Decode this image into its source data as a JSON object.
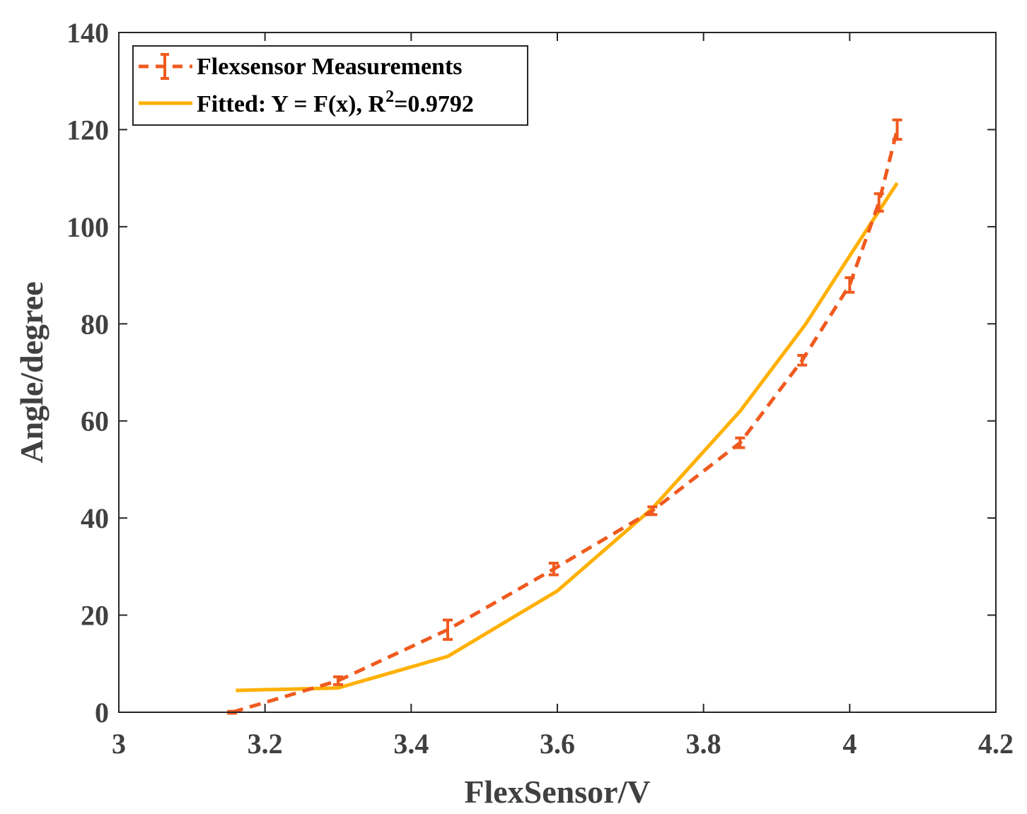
{
  "chart_data": {
    "type": "line",
    "title": "",
    "xlabel": "FlexSensor/V",
    "ylabel": "Angle/degree",
    "xlim": [
      3,
      4.2
    ],
    "ylim": [
      0,
      140
    ],
    "xticks": [
      3,
      3.2,
      3.4,
      3.6,
      3.8,
      4,
      4.2
    ],
    "xtick_labels": [
      "3",
      "3.2",
      "3.4",
      "3.6",
      "3.8",
      "4",
      "4.2"
    ],
    "yticks": [
      0,
      20,
      40,
      60,
      80,
      100,
      120,
      140
    ],
    "ytick_labels": [
      "0",
      "20",
      "40",
      "60",
      "80",
      "100",
      "120",
      "140"
    ],
    "grid": false,
    "legend_position": "top-left",
    "series": [
      {
        "name": "Flexsensor Measurements",
        "style": "dashed-errorbar",
        "color": "#F05A1E",
        "x": [
          3.155,
          3.3,
          3.45,
          3.595,
          3.73,
          3.85,
          3.935,
          4.0,
          4.04,
          4.065
        ],
        "y": [
          0,
          6.5,
          17,
          29.5,
          41.5,
          55.5,
          72.5,
          88,
          105,
          120
        ],
        "err": [
          0.2,
          0.8,
          2.0,
          1.2,
          0.8,
          1.0,
          1.0,
          1.5,
          1.8,
          2.0
        ]
      },
      {
        "name": "Fitted",
        "style": "solid",
        "color": "#FFB000",
        "x": [
          3.16,
          3.3,
          3.45,
          3.6,
          3.73,
          3.85,
          3.94,
          4.0,
          4.065
        ],
        "y": [
          4.5,
          5,
          11.5,
          25,
          42,
          62,
          80,
          94,
          109
        ]
      }
    ],
    "legend": {
      "entry1": "Flexsensor Measurements",
      "entry2_prefix": "Fitted: Y = F(x), R",
      "entry2_sup": "2",
      "entry2_suffix": "=0.9792"
    }
  }
}
